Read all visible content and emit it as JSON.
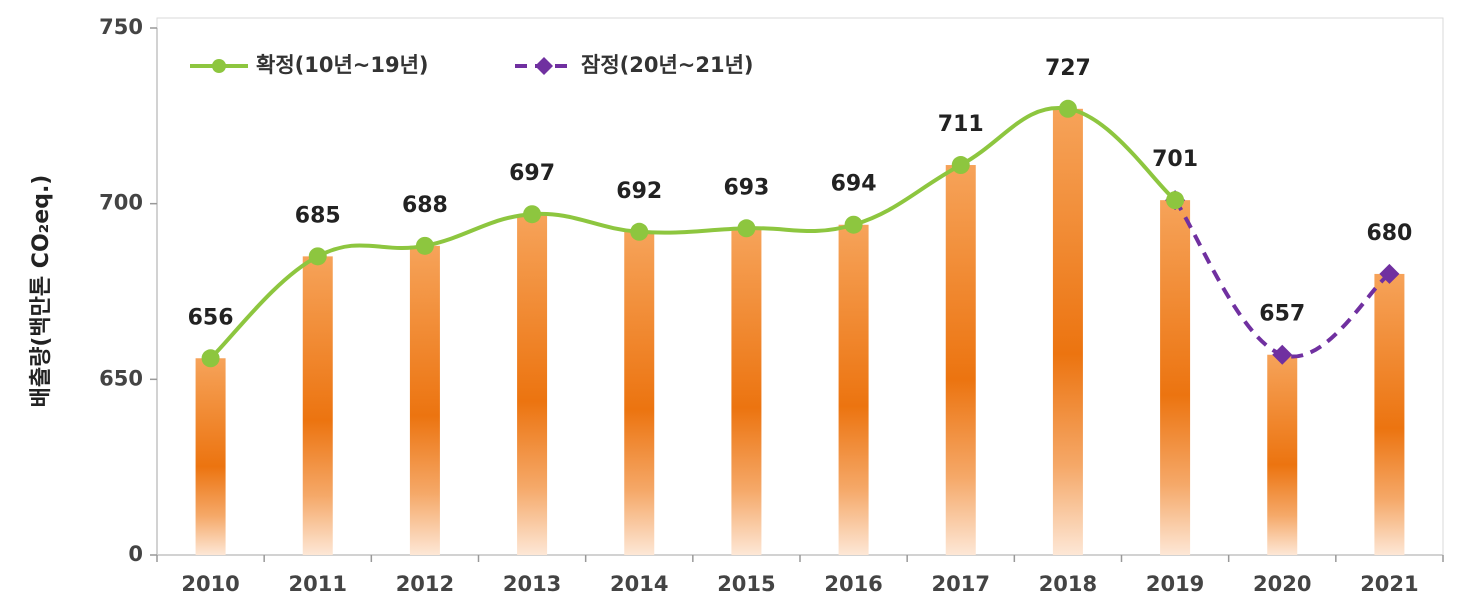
{
  "chart_data": {
    "type": "bar",
    "y_label": "배출량(백만톤 CO₂eq.)",
    "categories": [
      "2010",
      "2011",
      "2012",
      "2013",
      "2014",
      "2015",
      "2016",
      "2017",
      "2018",
      "2019",
      "2020",
      "2021"
    ],
    "values": [
      656,
      685,
      688,
      697,
      692,
      693,
      694,
      711,
      727,
      701,
      657,
      680
    ],
    "color": "#f07f09",
    "series": [
      {
        "name": "확정(10년~19년)",
        "color": "#8dc63f",
        "dashed": false,
        "marker": "circle",
        "values": [
          656,
          685,
          688,
          697,
          692,
          693,
          694,
          711,
          727,
          701,
          null,
          null
        ]
      },
      {
        "name": "잠정(20년~21년)",
        "color": "#7030a0",
        "dashed": true,
        "marker": "diamond",
        "values": [
          null,
          null,
          null,
          null,
          null,
          null,
          null,
          null,
          null,
          701,
          657,
          680
        ]
      }
    ],
    "ylim": [
      0,
      750
    ],
    "yticks": [
      0,
      650,
      700,
      750
    ],
    "axis_break": true,
    "grid": false,
    "legend": "top-left"
  }
}
